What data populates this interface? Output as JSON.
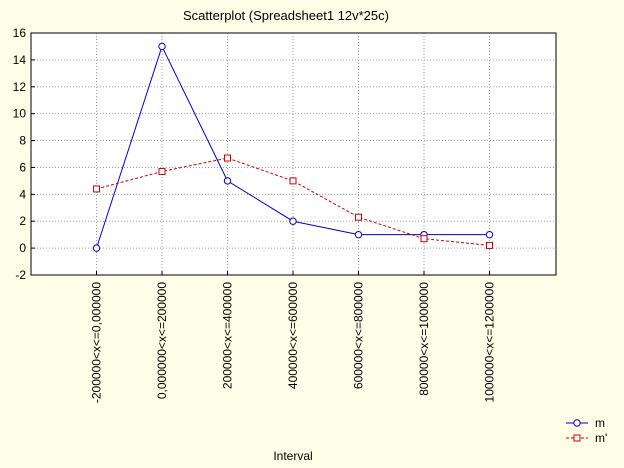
{
  "chart_data": {
    "type": "line",
    "title": "Scatterplot (Spreadsheet1 12v*25c)",
    "xlabel": "Interval",
    "ylabel": "",
    "categories": [
      "-200000<x<=0,000000",
      "0,000000<x<=200000",
      "200000<x<=400000",
      "400000<x<=600000",
      "600000<x<=800000",
      "800000<x<=1000000",
      "1000000<x<=1200000"
    ],
    "ylim": [
      -2,
      16
    ],
    "yticks": [
      -2,
      0,
      2,
      4,
      6,
      8,
      10,
      12,
      14,
      16
    ],
    "grid": true,
    "legend_position": "bottom-right",
    "series": [
      {
        "name": "m",
        "values": [
          0,
          15,
          5,
          2,
          1,
          1,
          1
        ],
        "color": "#0000cc",
        "marker": "circle",
        "line": "solid"
      },
      {
        "name": "m'",
        "values": [
          4.4,
          5.7,
          6.7,
          5.0,
          2.3,
          0.7,
          0.2
        ],
        "color": "#cc0000",
        "marker": "square",
        "line": "dashed"
      }
    ]
  }
}
